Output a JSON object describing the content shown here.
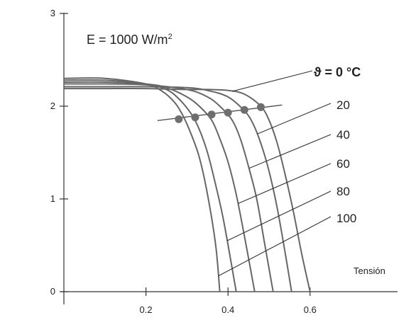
{
  "chart_data": {
    "type": "line",
    "title": "",
    "xlabel": "Tensión",
    "ylabel": "",
    "xlim": [
      0,
      0.82
    ],
    "ylim": [
      0,
      3.05
    ],
    "x_ticks": [
      "0.2",
      "0.4",
      "0.6"
    ],
    "y_ticks": [
      "0",
      "1",
      "2",
      "3"
    ],
    "annotation": "E = 1000 W/m²",
    "annotation_parts": {
      "prefix": "E = 1000 W/m",
      "superscript": "2"
    },
    "legend_labels": [
      "ϑ = 0 °C",
      "20",
      "40",
      "60",
      "80",
      "100"
    ],
    "grid": false,
    "series": [
      {
        "name": "ϑ = 0 °C",
        "x": [
          0,
          0.1,
          0.2,
          0.3,
          0.35,
          0.4,
          0.44,
          0.48,
          0.5,
          0.52,
          0.54,
          0.56,
          0.58,
          0.6
        ],
        "y": [
          2.19,
          2.19,
          2.19,
          2.18,
          2.18,
          2.17,
          2.13,
          2.0,
          1.85,
          1.6,
          1.25,
          0.85,
          0.4,
          0.0
        ]
      },
      {
        "name": "20",
        "x": [
          0,
          0.1,
          0.2,
          0.3,
          0.35,
          0.4,
          0.44,
          0.46,
          0.48,
          0.5,
          0.52,
          0.54,
          0.555
        ],
        "y": [
          2.21,
          2.21,
          2.21,
          2.2,
          2.17,
          2.1,
          1.95,
          1.82,
          1.6,
          1.3,
          0.9,
          0.4,
          0.0
        ]
      },
      {
        "name": "40",
        "x": [
          0,
          0.1,
          0.2,
          0.3,
          0.35,
          0.38,
          0.41,
          0.43,
          0.45,
          0.47,
          0.49,
          0.51
        ],
        "y": [
          2.24,
          2.24,
          2.23,
          2.18,
          2.1,
          2.0,
          1.85,
          1.65,
          1.35,
          1.0,
          0.5,
          0.0
        ]
      },
      {
        "name": "60",
        "x": [
          0,
          0.1,
          0.2,
          0.25,
          0.3,
          0.33,
          0.36,
          0.38,
          0.4,
          0.42,
          0.44,
          0.465
        ],
        "y": [
          2.26,
          2.26,
          2.24,
          2.2,
          2.1,
          2.0,
          1.85,
          1.65,
          1.4,
          1.05,
          0.6,
          0.0
        ]
      },
      {
        "name": "80",
        "x": [
          0,
          0.1,
          0.2,
          0.25,
          0.28,
          0.31,
          0.33,
          0.35,
          0.37,
          0.39,
          0.42
        ],
        "y": [
          2.28,
          2.28,
          2.24,
          2.18,
          2.08,
          1.92,
          1.75,
          1.5,
          1.15,
          0.75,
          0.0
        ]
      },
      {
        "name": "100",
        "x": [
          0,
          0.1,
          0.2,
          0.24,
          0.27,
          0.29,
          0.31,
          0.33,
          0.35,
          0.37,
          0.38
        ],
        "y": [
          2.3,
          2.3,
          2.24,
          2.16,
          2.04,
          1.9,
          1.7,
          1.45,
          1.05,
          0.5,
          0.0
        ]
      }
    ],
    "mpp": {
      "x": [
        0.28,
        0.32,
        0.36,
        0.4,
        0.44,
        0.48
      ],
      "y": [
        1.86,
        1.88,
        1.91,
        1.93,
        1.96,
        1.99
      ]
    }
  }
}
